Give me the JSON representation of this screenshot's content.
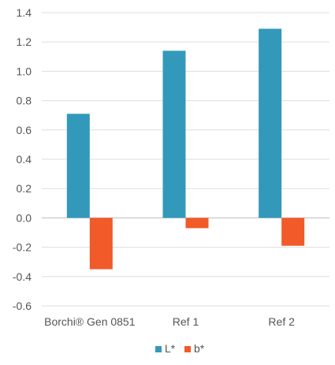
{
  "chart_data": {
    "type": "bar",
    "title": "",
    "xlabel": "",
    "ylabel": "",
    "categories": [
      "Borchi® Gen 0851",
      "Ref 1",
      "Ref 2"
    ],
    "series": [
      {
        "name": "L*",
        "values": [
          0.71,
          1.14,
          1.29
        ],
        "color": "#3399bb"
      },
      {
        "name": "b*",
        "values": [
          -0.35,
          -0.07,
          -0.19
        ],
        "color": "#f15a29"
      }
    ],
    "ylim": [
      -0.6,
      1.4
    ],
    "yticks": [
      "1.4",
      "1.2",
      "1.0",
      "0.8",
      "0.6",
      "0.4",
      "0.2",
      "0.0",
      "-0.2",
      "-0.4",
      "-0.6"
    ],
    "grid": true,
    "legend_position": "bottom-center",
    "colors": {
      "grid": "#dddddd",
      "axis": "#bbbbbb",
      "text": "#555555"
    }
  }
}
